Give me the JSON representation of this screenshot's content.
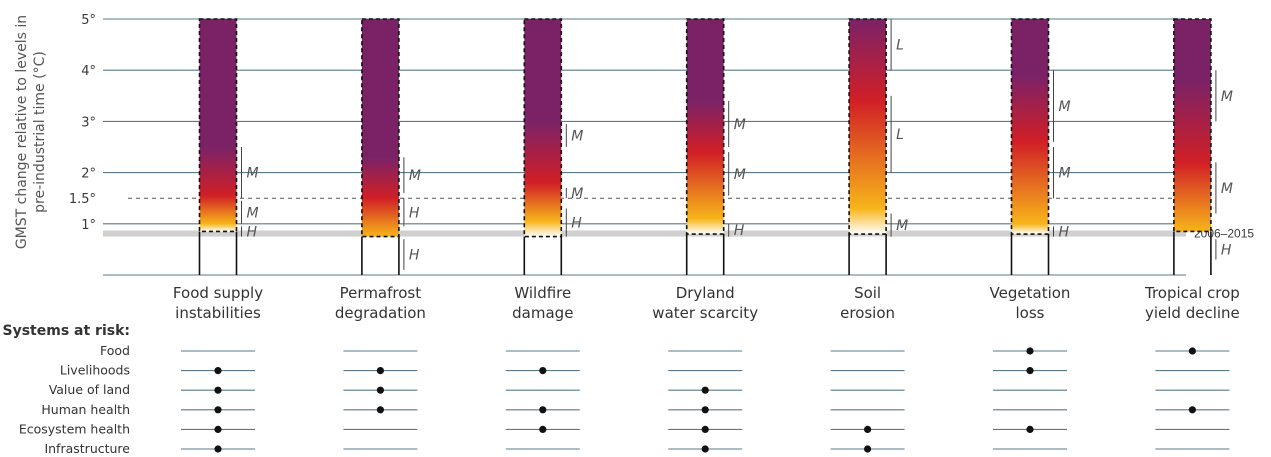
{
  "chart_data": {
    "type": "bar",
    "ylabel_line1": "GMST change relative to levels in",
    "ylabel_line2": "pre-industrial time (°C)",
    "ylim": [
      -1,
      5
    ],
    "yticks": [
      {
        "value": 1,
        "label": "1°"
      },
      {
        "value": 1.5,
        "label": "1.5°"
      },
      {
        "value": 2,
        "label": "2°"
      },
      {
        "value": 3,
        "label": "3°"
      },
      {
        "value": 4,
        "label": "4°"
      },
      {
        "value": 5,
        "label": "5°"
      }
    ],
    "reference_band": {
      "from": 0.75,
      "to": 0.87,
      "label": "2006–2015"
    },
    "risk_colors": {
      "undetectable": "#ffffff",
      "moderate": "#f7b51a",
      "high": "#d11f26",
      "very_high": "#7b2267"
    },
    "categories": [
      {
        "label_lines": [
          "Food supply",
          "instabilities"
        ],
        "transitions": [
          {
            "value": 0.85,
            "level": "undetectable"
          },
          {
            "value": 1.0,
            "level": "moderate"
          },
          {
            "value": 1.55,
            "level": "high"
          },
          {
            "value": 2.5,
            "level": "very_high"
          }
        ],
        "confidence": [
          {
            "from": 2.5,
            "to": 1.5,
            "label": "M"
          },
          {
            "from": 1.45,
            "to": 1.0,
            "label": "M"
          },
          {
            "from": 0.95,
            "to": 0.75,
            "label": "H"
          }
        ],
        "systems": [
          "Livelihoods",
          "Value of land",
          "Human health",
          "Ecosystem health",
          "Infrastructure"
        ]
      },
      {
        "label_lines": [
          "Permafrost",
          "degradation"
        ],
        "transitions": [
          {
            "value": 0.75,
            "level": "moderate"
          },
          {
            "value": 1.5,
            "level": "high"
          },
          {
            "value": 2.3,
            "level": "very_high"
          }
        ],
        "confidence": [
          {
            "from": 2.3,
            "to": 1.6,
            "label": "M"
          },
          {
            "from": 1.5,
            "to": 0.95,
            "label": "H"
          },
          {
            "from": 0.7,
            "to": 0.1,
            "label": "H"
          }
        ],
        "systems": [
          "Livelihoods",
          "Value of land",
          "Human health"
        ]
      },
      {
        "label_lines": [
          "Wildfire",
          "damage"
        ],
        "transitions": [
          {
            "value": 0.75,
            "level": "undetectable"
          },
          {
            "value": 1.05,
            "level": "moderate"
          },
          {
            "value": 1.8,
            "level": "high"
          },
          {
            "value": 3.0,
            "level": "very_high"
          }
        ],
        "confidence": [
          {
            "from": 2.95,
            "to": 2.5,
            "label": "M"
          },
          {
            "from": 1.7,
            "to": 1.5,
            "label": "M"
          },
          {
            "from": 1.3,
            "to": 0.75,
            "label": "H"
          }
        ],
        "systems": [
          "Livelihoods",
          "Human health",
          "Ecosystem health"
        ]
      },
      {
        "label_lines": [
          "Dryland",
          "water scarcity"
        ],
        "transitions": [
          {
            "value": 0.8,
            "level": "undetectable"
          },
          {
            "value": 1.1,
            "level": "moderate"
          },
          {
            "value": 2.4,
            "level": "high"
          },
          {
            "value": 3.4,
            "level": "very_high"
          }
        ],
        "confidence": [
          {
            "from": 3.4,
            "to": 2.5,
            "label": "M"
          },
          {
            "from": 2.4,
            "to": 1.55,
            "label": "M"
          },
          {
            "from": 1.0,
            "to": 0.75,
            "label": "H"
          }
        ],
        "systems": [
          "Value of land",
          "Human health",
          "Ecosystem health",
          "Infrastructure"
        ]
      },
      {
        "label_lines": [
          "Soil",
          "erosion"
        ],
        "transitions": [
          {
            "value": 0.8,
            "level": "undetectable"
          },
          {
            "value": 1.3,
            "level": "moderate"
          },
          {
            "value": 3.4,
            "level": "high"
          },
          {
            "value": 5.0,
            "level": "very_high"
          }
        ],
        "confidence": [
          {
            "from": 5.0,
            "to": 4.0,
            "label": "L"
          },
          {
            "from": 3.5,
            "to": 2.0,
            "label": "L"
          },
          {
            "from": 1.2,
            "to": 0.75,
            "label": "M"
          }
        ],
        "systems": [
          "Ecosystem health",
          "Infrastructure"
        ]
      },
      {
        "label_lines": [
          "Vegetation",
          "loss"
        ],
        "transitions": [
          {
            "value": 0.8,
            "level": "undetectable"
          },
          {
            "value": 1.0,
            "level": "moderate"
          },
          {
            "value": 2.6,
            "level": "high"
          },
          {
            "value": 3.9,
            "level": "very_high"
          }
        ],
        "confidence": [
          {
            "from": 4.0,
            "to": 2.6,
            "label": "M"
          },
          {
            "from": 2.5,
            "to": 1.5,
            "label": "M"
          },
          {
            "from": 0.95,
            "to": 0.75,
            "label": "H"
          }
        ],
        "systems": [
          "Food",
          "Livelihoods",
          "Ecosystem health"
        ]
      },
      {
        "label_lines": [
          "Tropical crop",
          "yield decline"
        ],
        "transitions": [
          {
            "value": 0.85,
            "level": "moderate"
          },
          {
            "value": 2.2,
            "level": "high"
          },
          {
            "value": 3.8,
            "level": "very_high"
          }
        ],
        "confidence": [
          {
            "from": 4.0,
            "to": 3.0,
            "label": "M"
          },
          {
            "from": 2.2,
            "to": 1.2,
            "label": "M"
          },
          {
            "from": 0.7,
            "to": 0.3,
            "label": "H"
          }
        ],
        "systems": [
          "Food",
          "Human health"
        ]
      }
    ],
    "systems_title": "Systems at risk:",
    "systems_rows": [
      "Food",
      "Livelihoods",
      "Value of land",
      "Human health",
      "Ecosystem health",
      "Infrastructure"
    ],
    "colors": {
      "gridline": "#5a7a8a",
      "band": "#d0d0d0",
      "dot": "#111111"
    }
  }
}
